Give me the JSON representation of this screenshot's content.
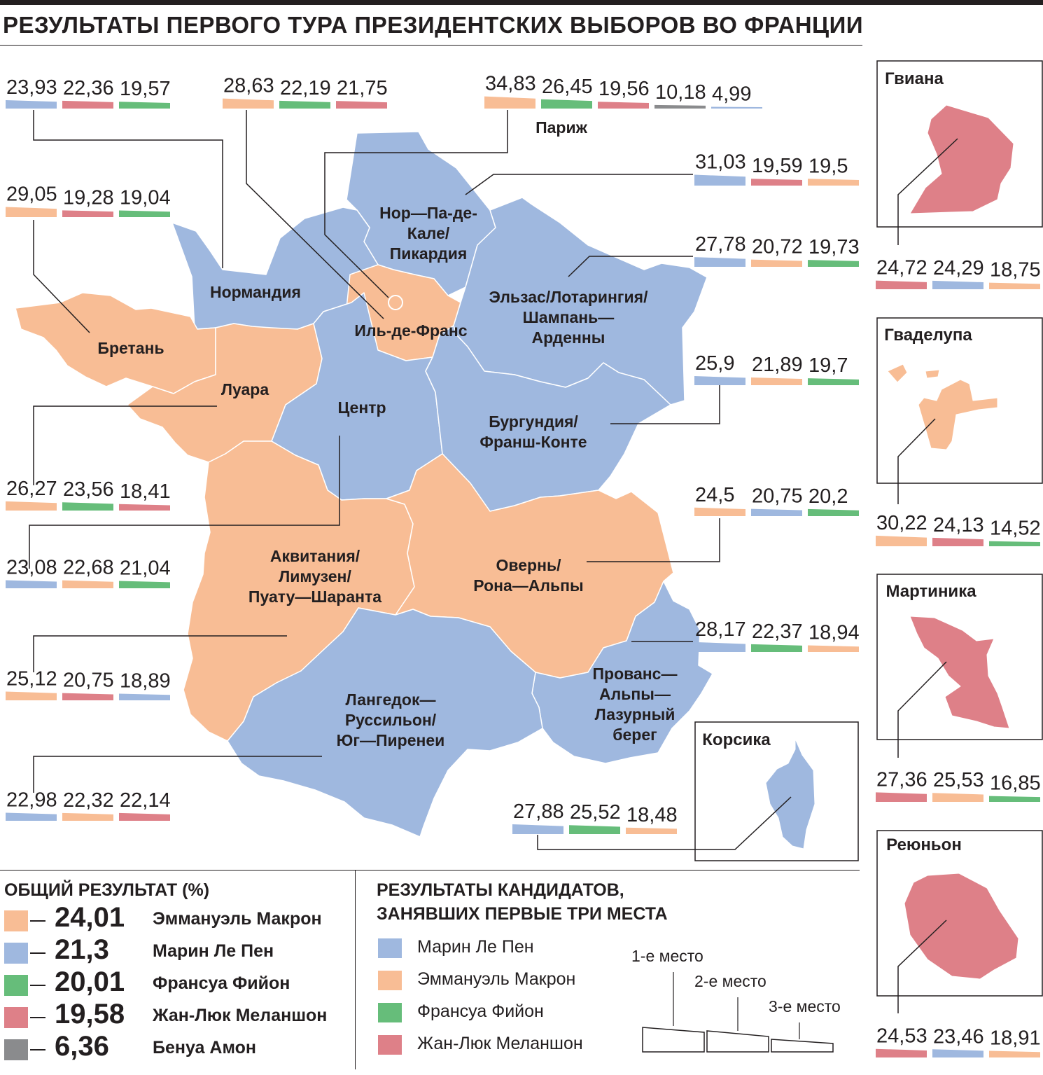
{
  "title": "РЕЗУЛЬТАТЫ ПЕРВОГО ТУРА ПРЕЗИДЕНТСКИХ ВЫБОРОВ ВО ФРАНЦИИ",
  "colors": {
    "macron": "#f8bd95",
    "lepen": "#9fb8df",
    "fillon": "#66bd7a",
    "melenchon": "#de8088",
    "hamon": "#8a8b8d"
  },
  "totals": {
    "heading": "ОБЩИЙ РЕЗУЛЬТАТ (%)",
    "rows": [
      {
        "candidate": "macron",
        "value": "24,01",
        "name": "Эммануэль Макрон"
      },
      {
        "candidate": "lepen",
        "value": "21,3",
        "name": "Марин Ле Пен"
      },
      {
        "candidate": "fillon",
        "value": "20,01",
        "name": "Франсуа Фийон"
      },
      {
        "candidate": "melenchon",
        "value": "19,58",
        "name": "Жан-Люк Меланшон"
      },
      {
        "candidate": "hamon",
        "value": "6,36",
        "name": "Бенуа Амон"
      }
    ]
  },
  "key": {
    "heading": "РЕЗУЛЬТАТЫ КАНДИДАТОВ,\nЗАНЯВШИХ ПЕРВЫЕ ТРИ МЕСТА",
    "rows": [
      {
        "candidate": "lepen",
        "name": "Марин Ле Пен"
      },
      {
        "candidate": "macron",
        "name": "Эммануэль Макрон"
      },
      {
        "candidate": "fillon",
        "name": "Франсуа Фийон"
      },
      {
        "candidate": "melenchon",
        "name": "Жан-Люк Меланшон"
      }
    ],
    "places": [
      "1-е место",
      "2-е место",
      "3-е место"
    ]
  },
  "regions": [
    {
      "id": "normandie",
      "name": [
        "Нормандия"
      ],
      "winner": "lepen",
      "results": [
        {
          "candidate": "lepen",
          "value": "23,93"
        },
        {
          "candidate": "melenchon",
          "value": "22,36"
        },
        {
          "candidate": "fillon",
          "value": "19,57"
        }
      ]
    },
    {
      "id": "idf",
      "name": [
        "Иль-де-Франс"
      ],
      "winner": "macron",
      "results": [
        {
          "candidate": "macron",
          "value": "28,63"
        },
        {
          "candidate": "fillon",
          "value": "22,19"
        },
        {
          "candidate": "melenchon",
          "value": "21,75"
        }
      ]
    },
    {
      "id": "paris",
      "name": [
        "Париж"
      ],
      "winner": "macron",
      "results": [
        {
          "candidate": "macron",
          "value": "34,83"
        },
        {
          "candidate": "fillon",
          "value": "26,45"
        },
        {
          "candidate": "melenchon",
          "value": "19,56"
        },
        {
          "candidate": "hamon",
          "value": "10,18"
        },
        {
          "candidate": "lepen",
          "value": "4,99"
        }
      ]
    },
    {
      "id": "bretagne",
      "name": [
        "Бретань"
      ],
      "winner": "macron",
      "results": [
        {
          "candidate": "macron",
          "value": "29,05"
        },
        {
          "candidate": "melenchon",
          "value": "19,28"
        },
        {
          "candidate": "fillon",
          "value": "19,04"
        }
      ]
    },
    {
      "id": "npdc",
      "name": [
        "Нор—Па-де-",
        "Кале/",
        "Пикардия"
      ],
      "winner": "lepen",
      "results": [
        {
          "candidate": "lepen",
          "value": "31,03"
        },
        {
          "candidate": "melenchon",
          "value": "19,59"
        },
        {
          "candidate": "macron",
          "value": "19,5"
        }
      ]
    },
    {
      "id": "alsace",
      "name": [
        "Эльзас/Лотарингия/",
        "Шампань—",
        "Арденны"
      ],
      "winner": "lepen",
      "results": [
        {
          "candidate": "lepen",
          "value": "27,78"
        },
        {
          "candidate": "macron",
          "value": "20,72"
        },
        {
          "candidate": "fillon",
          "value": "19,73"
        }
      ]
    },
    {
      "id": "bourgogne",
      "name": [
        "Бургундия/",
        "Франш-Конте"
      ],
      "winner": "lepen",
      "results": [
        {
          "candidate": "lepen",
          "value": "25,9"
        },
        {
          "candidate": "macron",
          "value": "21,89"
        },
        {
          "candidate": "fillon",
          "value": "19,7"
        }
      ]
    },
    {
      "id": "loire",
      "name": [
        "Луара"
      ],
      "winner": "macron",
      "results": [
        {
          "candidate": "macron",
          "value": "26,27"
        },
        {
          "candidate": "fillon",
          "value": "23,56"
        },
        {
          "candidate": "melenchon",
          "value": "18,41"
        }
      ]
    },
    {
      "id": "centre",
      "name": [
        "Центр"
      ],
      "winner": "lepen",
      "results": [
        {
          "candidate": "lepen",
          "value": "23,08"
        },
        {
          "candidate": "macron",
          "value": "22,68"
        },
        {
          "candidate": "fillon",
          "value": "21,04"
        }
      ]
    },
    {
      "id": "auvergne",
      "name": [
        "Овернь/",
        "Рона—Альпы"
      ],
      "winner": "macron",
      "results": [
        {
          "candidate": "macron",
          "value": "24,5"
        },
        {
          "candidate": "lepen",
          "value": "20,75"
        },
        {
          "candidate": "fillon",
          "value": "20,2"
        }
      ]
    },
    {
      "id": "aquitaine",
      "name": [
        "Аквитания/",
        "Лимузен/",
        "Пуату—Шаранта"
      ],
      "winner": "macron",
      "results": [
        {
          "candidate": "macron",
          "value": "25,12"
        },
        {
          "candidate": "melenchon",
          "value": "20,75"
        },
        {
          "candidate": "lepen",
          "value": "18,89"
        }
      ]
    },
    {
      "id": "paca",
      "name": [
        "Прованс—",
        "Альпы—",
        "Лазурный",
        "берег"
      ],
      "winner": "lepen",
      "results": [
        {
          "candidate": "lepen",
          "value": "28,17"
        },
        {
          "candidate": "fillon",
          "value": "22,37"
        },
        {
          "candidate": "macron",
          "value": "18,94"
        }
      ]
    },
    {
      "id": "languedoc",
      "name": [
        "Лангедок—",
        "Руссильон/",
        "Юг—Пиренеи"
      ],
      "winner": "lepen",
      "results": [
        {
          "candidate": "lepen",
          "value": "22,98"
        },
        {
          "candidate": "macron",
          "value": "22,32"
        },
        {
          "candidate": "melenchon",
          "value": "22,14"
        }
      ]
    },
    {
      "id": "corse",
      "name": [
        "Корсика"
      ],
      "winner": "lepen",
      "results": [
        {
          "candidate": "lepen",
          "value": "27,88"
        },
        {
          "candidate": "fillon",
          "value": "25,52"
        },
        {
          "candidate": "macron",
          "value": "18,48"
        }
      ]
    },
    {
      "id": "guyane",
      "name": [
        "Гвиана"
      ],
      "winner": "melenchon",
      "results": [
        {
          "candidate": "melenchon",
          "value": "24,72"
        },
        {
          "candidate": "lepen",
          "value": "24,29"
        },
        {
          "candidate": "macron",
          "value": "18,75"
        }
      ]
    },
    {
      "id": "guadeloupe",
      "name": [
        "Гваделупа"
      ],
      "winner": "macron",
      "results": [
        {
          "candidate": "macron",
          "value": "30,22"
        },
        {
          "candidate": "melenchon",
          "value": "24,13"
        },
        {
          "candidate": "fillon",
          "value": "14,52"
        }
      ]
    },
    {
      "id": "martinique",
      "name": [
        "Мартиника"
      ],
      "winner": "melenchon",
      "results": [
        {
          "candidate": "melenchon",
          "value": "27,36"
        },
        {
          "candidate": "macron",
          "value": "25,53"
        },
        {
          "candidate": "fillon",
          "value": "16,85"
        }
      ]
    },
    {
      "id": "reunion",
      "name": [
        "Реюньон"
      ],
      "winner": "melenchon",
      "results": [
        {
          "candidate": "melenchon",
          "value": "24,53"
        },
        {
          "candidate": "lepen",
          "value": "23,46"
        },
        {
          "candidate": "macron",
          "value": "18,91"
        }
      ]
    }
  ]
}
